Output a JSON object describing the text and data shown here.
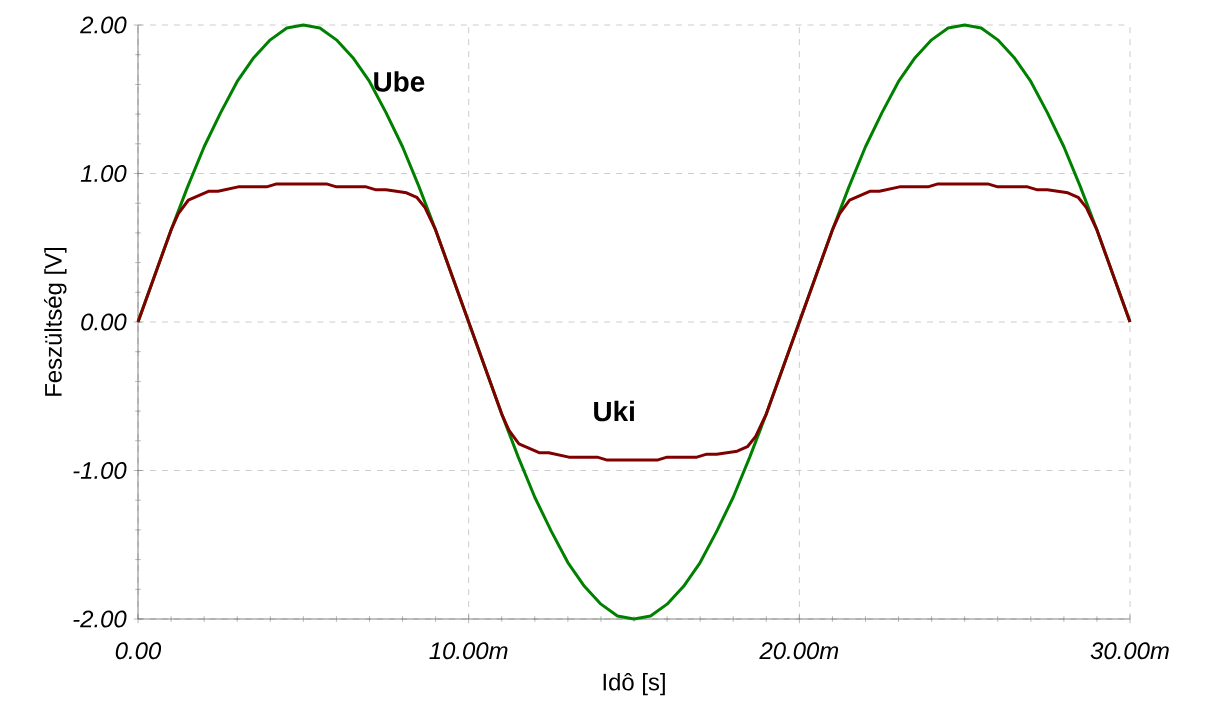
{
  "chart_data": {
    "type": "line",
    "xlabel": "Idô [s]",
    "ylabel": "Feszültség [V]",
    "xlim": [
      0,
      30
    ],
    "ylim": [
      -2,
      2
    ],
    "xticks": [
      {
        "value": 0,
        "label": "0.00"
      },
      {
        "value": 10,
        "label": "10.00m"
      },
      {
        "value": 20,
        "label": "20.00m"
      },
      {
        "value": 30,
        "label": "30.00m"
      }
    ],
    "yticks": [
      {
        "value": -2,
        "label": "-2.00"
      },
      {
        "value": -1,
        "label": "-1.00"
      },
      {
        "value": 0,
        "label": "0.00"
      },
      {
        "value": 1,
        "label": "1.00"
      },
      {
        "value": 2,
        "label": "2.00"
      }
    ],
    "grid": true,
    "line_style": "solid",
    "marker": "none",
    "annotations": [
      "Ube",
      "Uki"
    ],
    "series": [
      {
        "color": "#008000",
        "x": [
          0,
          0.5,
          1,
          1.5,
          2,
          2.5,
          3,
          3.5,
          4,
          4.5,
          5,
          5.5,
          6,
          6.5,
          7,
          7.5,
          8,
          8.5,
          9,
          9.5,
          10,
          10.5,
          11,
          11.5,
          12,
          12.5,
          13,
          13.5,
          14,
          14.5,
          15,
          15.5,
          16,
          16.5,
          17,
          17.5,
          18,
          18.5,
          19,
          19.5,
          20,
          20.5,
          21,
          21.5,
          22,
          22.5,
          23,
          23.5,
          24,
          24.5,
          25,
          25.5,
          26,
          26.5,
          27,
          27.5,
          28,
          28.5,
          29,
          29.5,
          30
        ],
        "values": [
          0,
          0.31,
          0.62,
          0.91,
          1.18,
          1.41,
          1.62,
          1.78,
          1.9,
          1.98,
          2.0,
          1.98,
          1.9,
          1.78,
          1.62,
          1.41,
          1.18,
          0.91,
          0.62,
          0.31,
          0,
          -0.31,
          -0.62,
          -0.91,
          -1.18,
          -1.41,
          -1.62,
          -1.78,
          -1.9,
          -1.98,
          -2.0,
          -1.98,
          -1.9,
          -1.78,
          -1.62,
          -1.41,
          -1.18,
          -0.91,
          -0.62,
          -0.31,
          0,
          0.31,
          0.62,
          0.91,
          1.18,
          1.41,
          1.62,
          1.78,
          1.9,
          1.98,
          2.0,
          1.98,
          1.9,
          1.78,
          1.62,
          1.41,
          1.18,
          0.91,
          0.62,
          0.31,
          0
        ]
      },
      {
        "color": "#800000",
        "x": [
          0,
          0.5,
          1,
          1.22,
          1.52,
          2.13,
          2.42,
          3.03,
          3.89,
          4.19,
          5.7,
          6,
          6.9,
          7.2,
          7.5,
          8.12,
          8.43,
          8.68,
          9,
          9.5,
          10,
          10.5,
          11,
          11.22,
          11.52,
          12.13,
          12.42,
          13.03,
          13.89,
          14.19,
          15.7,
          16,
          16.9,
          17.2,
          17.5,
          18.12,
          18.43,
          18.68,
          19,
          19.5,
          20,
          20.5,
          21,
          21.22,
          21.52,
          22.13,
          22.42,
          23.03,
          23.89,
          24.19,
          25.7,
          26,
          26.9,
          27.2,
          27.5,
          28.12,
          28.43,
          28.68,
          29,
          29.5,
          30
        ],
        "values": [
          0,
          0.31,
          0.62,
          0.73,
          0.82,
          0.88,
          0.88,
          0.91,
          0.91,
          0.93,
          0.93,
          0.91,
          0.91,
          0.89,
          0.89,
          0.87,
          0.84,
          0.77,
          0.62,
          0.31,
          0,
          -0.31,
          -0.62,
          -0.73,
          -0.82,
          -0.88,
          -0.88,
          -0.91,
          -0.91,
          -0.93,
          -0.93,
          -0.91,
          -0.91,
          -0.89,
          -0.89,
          -0.87,
          -0.84,
          -0.77,
          -0.62,
          -0.31,
          0,
          0.31,
          0.62,
          0.73,
          0.82,
          0.88,
          0.88,
          0.91,
          0.91,
          0.93,
          0.93,
          0.91,
          0.91,
          0.89,
          0.89,
          0.87,
          0.84,
          0.77,
          0.62,
          0.31,
          0
        ]
      }
    ]
  }
}
